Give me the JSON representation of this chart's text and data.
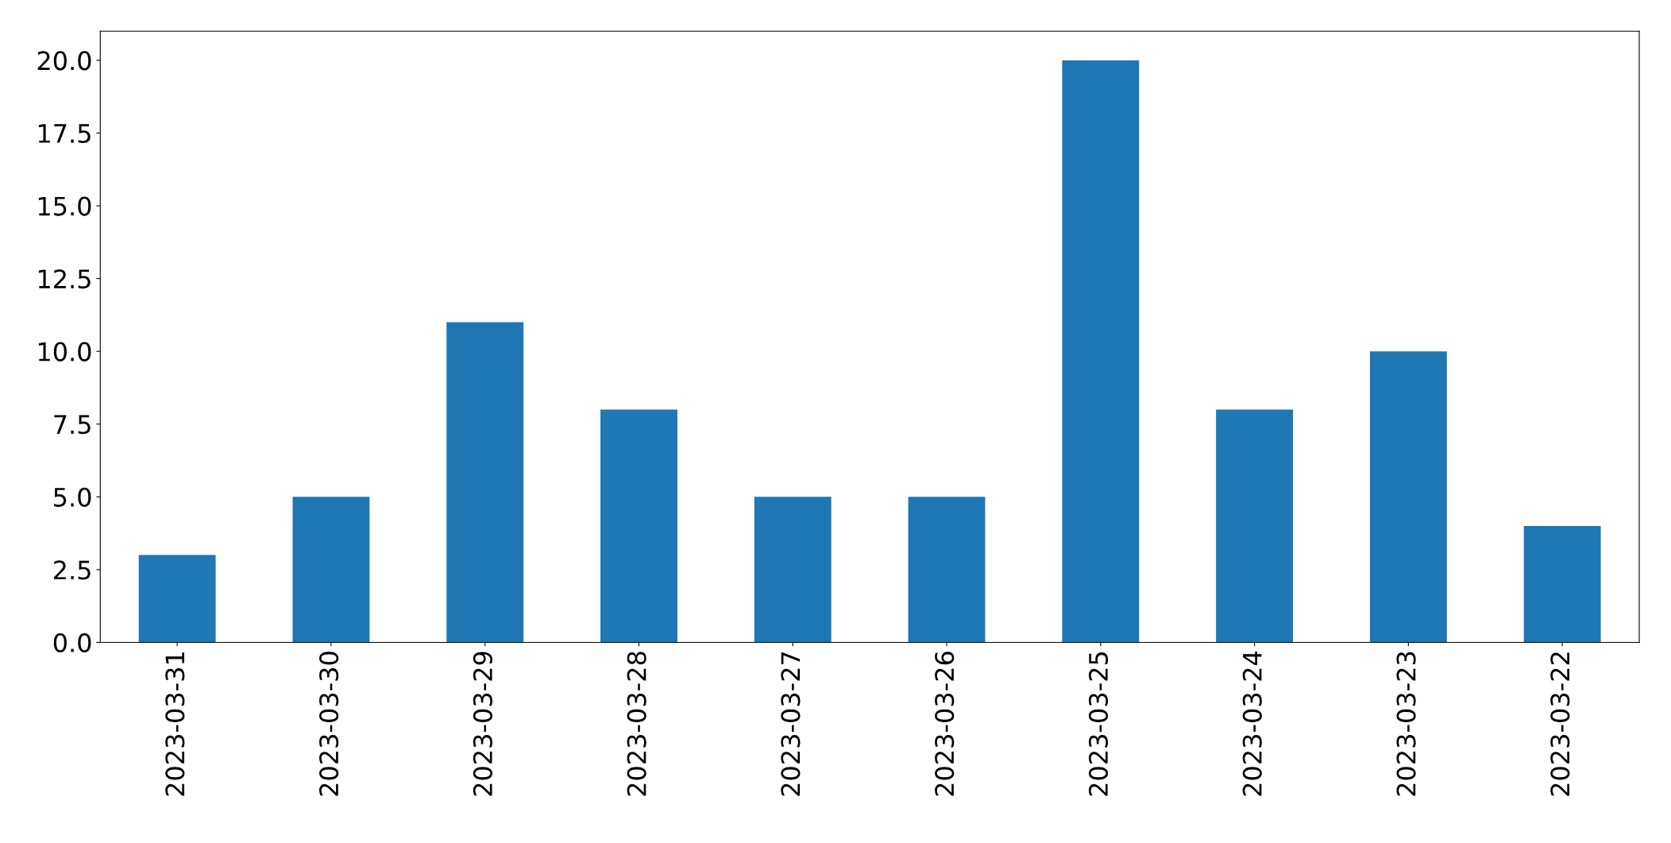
{
  "chart_data": {
    "type": "bar",
    "categories": [
      "2023-03-31",
      "2023-03-30",
      "2023-03-29",
      "2023-03-28",
      "2023-03-27",
      "2023-03-26",
      "2023-03-25",
      "2023-03-24",
      "2023-03-23",
      "2023-03-22"
    ],
    "values": [
      3,
      5,
      11,
      8,
      5,
      5,
      20,
      8,
      10,
      4
    ],
    "color": "#1f77b4",
    "ylim": [
      0,
      21
    ],
    "yticks": [
      {
        "value": 0,
        "label": "0.0"
      },
      {
        "value": 2.5,
        "label": "2.5"
      },
      {
        "value": 5,
        "label": "5.0"
      },
      {
        "value": 7.5,
        "label": "7.5"
      },
      {
        "value": 10,
        "label": "10.0"
      },
      {
        "value": 12.5,
        "label": "12.5"
      },
      {
        "value": 15,
        "label": "15.0"
      },
      {
        "value": 17.5,
        "label": "17.5"
      },
      {
        "value": 20,
        "label": "20.0"
      }
    ],
    "grid": false
  }
}
